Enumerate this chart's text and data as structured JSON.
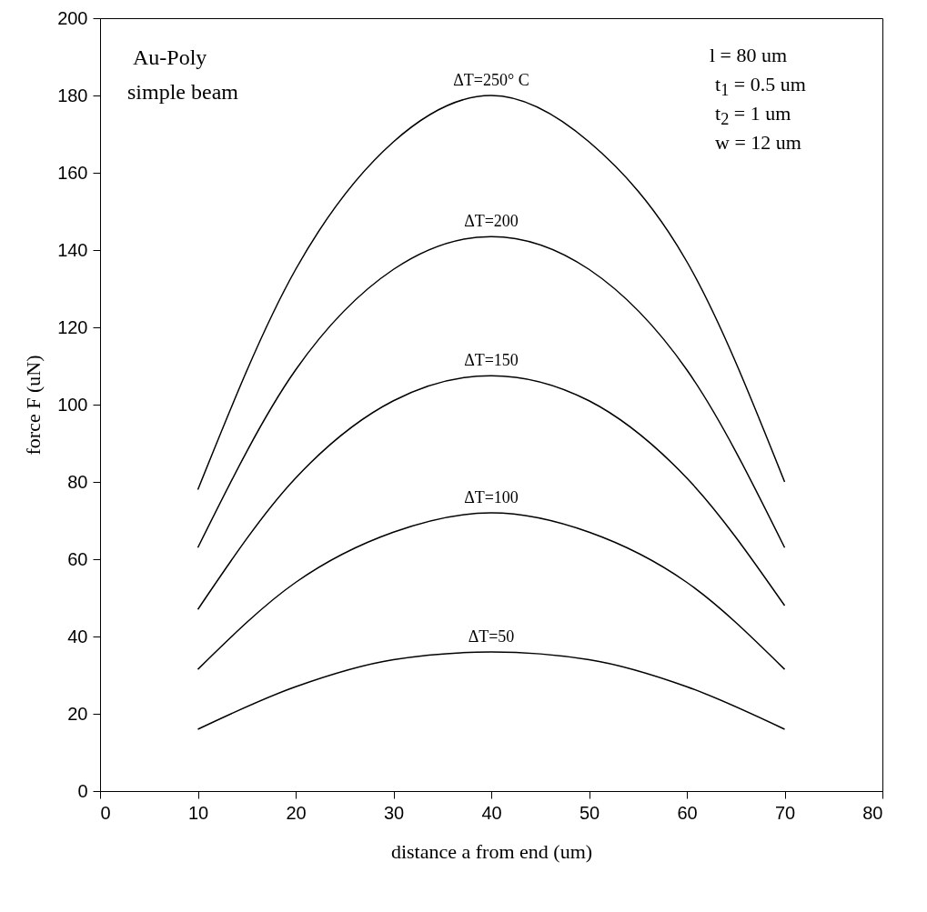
{
  "chart_data": {
    "type": "line",
    "xlabel": "distance a from end (um)",
    "ylabel": "force F (uN)",
    "x": [
      10,
      20,
      30,
      40,
      50,
      60,
      70
    ],
    "series": [
      {
        "name": "ΔT=250° C",
        "color": "#000000",
        "values": [
          78,
          135,
          168,
          180,
          168,
          137,
          80
        ]
      },
      {
        "name": "ΔT=200",
        "color": "#000000",
        "values": [
          63,
          109,
          135,
          143.5,
          135,
          109,
          63
        ]
      },
      {
        "name": "ΔT=150",
        "color": "#000000",
        "values": [
          47,
          81,
          101,
          107.5,
          101,
          81,
          48
        ]
      },
      {
        "name": "ΔT=100",
        "color": "#000000",
        "values": [
          31.5,
          54,
          67,
          72,
          67,
          54,
          31.5
        ]
      },
      {
        "name": "ΔT=50",
        "color": "#000000",
        "values": [
          16,
          27,
          34,
          36,
          34,
          27,
          16
        ]
      }
    ],
    "xlim": [
      0,
      80
    ],
    "xticks": [
      0,
      10,
      20,
      30,
      40,
      50,
      60,
      70,
      80
    ],
    "ylim": [
      0,
      200
    ],
    "yticks": [
      0,
      20,
      40,
      60,
      80,
      100,
      120,
      140,
      160,
      180,
      200
    ],
    "grid": false,
    "line_style": "solid",
    "annotations": [
      "Au-Poly",
      "simple beam",
      "l = 80 um",
      "t$_{1}$ = 0.5 um",
      "t$_{2}$ = 1 um",
      "w = 12 um"
    ]
  }
}
